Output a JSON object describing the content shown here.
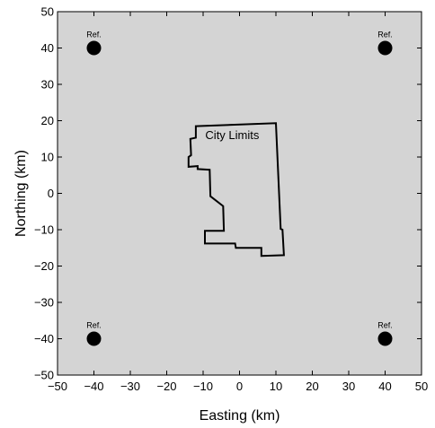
{
  "chart_data": {
    "type": "map",
    "xlabel": "Easting (km)",
    "ylabel": "Northing (km)",
    "xlim": [
      -50,
      50
    ],
    "ylim": [
      -50,
      50
    ],
    "xticks": [
      -50,
      -40,
      -30,
      -20,
      -10,
      0,
      10,
      20,
      30,
      40,
      50
    ],
    "yticks": [
      -50,
      -40,
      -30,
      -20,
      -10,
      0,
      10,
      20,
      30,
      40,
      50
    ],
    "background_color": "#d4d4d4",
    "reference_points": [
      {
        "label": "Ref.",
        "x": -40,
        "y": 40
      },
      {
        "label": "Ref.",
        "x": 40,
        "y": 40
      },
      {
        "label": "Ref.",
        "x": -40,
        "y": -40
      },
      {
        "label": "Ref.",
        "x": 40,
        "y": -40
      }
    ],
    "boundary": {
      "label": "City Limits",
      "label_position": [
        -2,
        15
      ],
      "points": [
        [
          -12.0,
          18.5
        ],
        [
          10.0,
          19.3
        ],
        [
          11.3,
          -9.8
        ],
        [
          11.8,
          -10.0
        ],
        [
          12.2,
          -17.0
        ],
        [
          6.0,
          -17.2
        ],
        [
          6.0,
          -15.0
        ],
        [
          -1.0,
          -15.0
        ],
        [
          -1.2,
          -13.8
        ],
        [
          -9.5,
          -13.8
        ],
        [
          -9.5,
          -10.3
        ],
        [
          -4.3,
          -10.3
        ],
        [
          -4.5,
          -3.5
        ],
        [
          -8.0,
          -0.8
        ],
        [
          -8.2,
          6.5
        ],
        [
          -11.5,
          6.7
        ],
        [
          -11.5,
          7.5
        ],
        [
          -14.0,
          7.3
        ],
        [
          -14.0,
          10.0
        ],
        [
          -13.3,
          10.5
        ],
        [
          -13.5,
          15.0
        ],
        [
          -12.0,
          15.3
        ]
      ]
    }
  }
}
